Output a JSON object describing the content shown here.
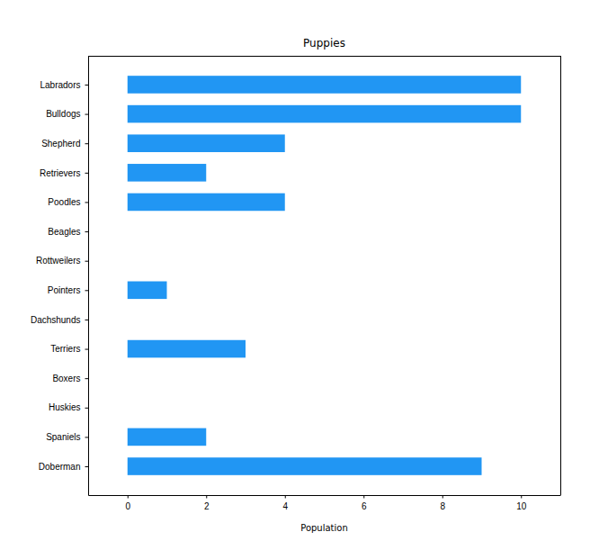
{
  "chart_data": {
    "type": "bar",
    "title": "Puppies",
    "x_label": "Population",
    "orientation": "horizontal",
    "categories": [
      "Labradors",
      "Bulldogs",
      "Shepherd",
      "Retrievers",
      "Poodles",
      "Beagles",
      "Rottweilers",
      "Pointers",
      "Dachshunds",
      "Terriers",
      "Boxers",
      "Huskies",
      "Spaniels",
      "Doberman"
    ],
    "values": [
      10,
      10,
      4,
      2,
      4,
      0,
      0,
      1,
      0,
      3,
      0,
      0,
      2,
      9
    ],
    "color": "#2196f3",
    "xlim": [
      -1,
      11
    ],
    "xticks": [
      0,
      2,
      4,
      6,
      8,
      10
    ],
    "grid": false
  }
}
